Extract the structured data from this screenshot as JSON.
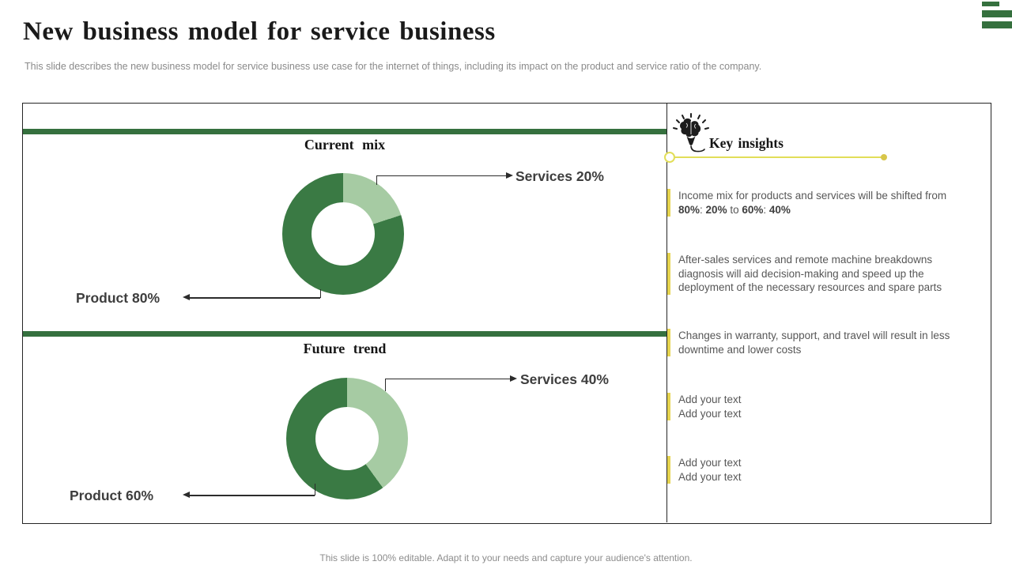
{
  "slide": {
    "title": "New business model for service business",
    "subtitle": "This slide describes the new business model for service business use case for the internet of things, including its impact on the product and service ratio of the company.",
    "footer": "This slide is 100% editable. Adapt it to your needs and capture your audience's attention."
  },
  "charts": {
    "current": {
      "title": "Current mix",
      "services_label": "Services 20%",
      "product_label": "Product 80%"
    },
    "future": {
      "title": "Future trend",
      "services_label": "Services 40%",
      "product_label": "Product 60%"
    }
  },
  "key_insights": {
    "heading": "Key insights",
    "icon": "brain-idea-icon",
    "items": [
      {
        "segments": [
          {
            "t": "Income mix for products and services will be shifted from ",
            "b": false
          },
          {
            "t": "80%",
            "b": true
          },
          {
            "t": ": ",
            "b": false
          },
          {
            "t": "20%",
            "b": true
          },
          {
            "t": " to ",
            "b": false
          },
          {
            "t": "60%",
            "b": true
          },
          {
            "t": ": ",
            "b": false
          },
          {
            "t": "40%",
            "b": true
          }
        ]
      },
      {
        "text": "After-sales services and remote machine breakdowns diagnosis will aid decision-making and speed up the deployment of the necessary resources and spare parts"
      },
      {
        "text": "Changes in warranty, support, and travel will result in less downtime and lower costs"
      },
      {
        "lines": [
          "Add your text",
          "Add your text"
        ]
      },
      {
        "lines": [
          "Add your text",
          "Add your text"
        ]
      }
    ]
  },
  "chart_data": [
    {
      "type": "pie",
      "subtype": "donut",
      "title": "Current mix",
      "labels": [
        "Services",
        "Product"
      ],
      "values": [
        20,
        80
      ],
      "colors": [
        "#a6cba3",
        "#3a7a44"
      ],
      "legend_position": "none",
      "annotations": [
        "Services 20%",
        "Product 80%"
      ]
    },
    {
      "type": "pie",
      "subtype": "donut",
      "title": "Future trend",
      "labels": [
        "Services",
        "Product"
      ],
      "values": [
        40,
        60
      ],
      "colors": [
        "#a6cba3",
        "#3a7a44"
      ],
      "legend_position": "none",
      "annotations": [
        "Services 40%",
        "Product 60%"
      ]
    }
  ],
  "colors": {
    "bar_green": "#35703e",
    "dark_green": "#3a7a44",
    "light_green": "#a6cba3",
    "accent_yellow": "#e6d44f",
    "line_yellow": "#e2de59"
  }
}
